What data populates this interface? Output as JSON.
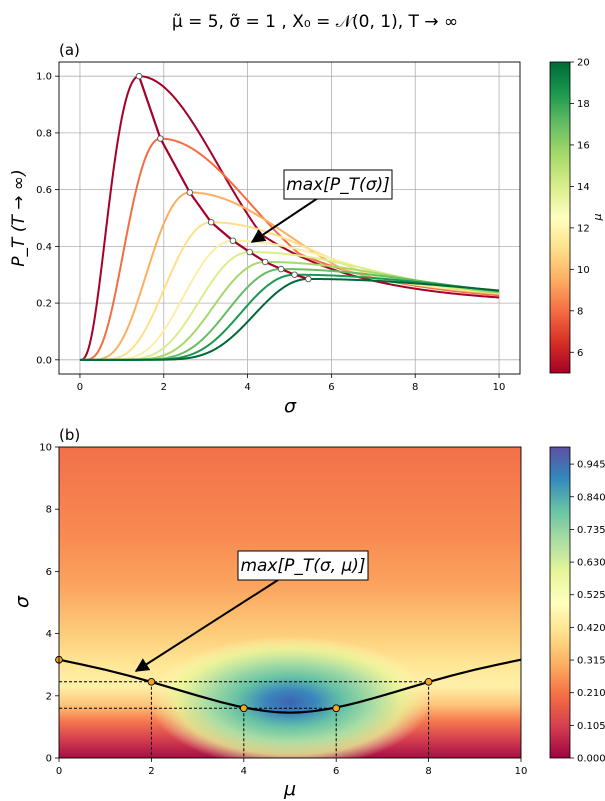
{
  "figure": {
    "suptitle": "μ̃ = 5, σ̃ = 1 , X₀ = 𝒩(0, 1), T → ∞"
  },
  "chart_data": [
    {
      "type": "line",
      "panel_label": "(a)",
      "xlabel": "σ",
      "ylabel": "P_T (T → ∞)",
      "xlim": [
        -0.5,
        10.5
      ],
      "ylim": [
        -0.05,
        1.05
      ],
      "xticks": [
        "0",
        "2",
        "4",
        "6",
        "8",
        "10"
      ],
      "yticks": [
        "0.0",
        "0.2",
        "0.4",
        "0.6",
        "0.8",
        "1.0"
      ],
      "grid": true,
      "annotation": "max[P_T(σ)]",
      "colorbar": {
        "label": "μ",
        "range": [
          5,
          20
        ],
        "ticks": [
          "6",
          "8",
          "10",
          "12",
          "14",
          "16",
          "18",
          "20"
        ],
        "colormap": "RdYlGn"
      },
      "series_mu": [
        5,
        6,
        7,
        8,
        9,
        10,
        11,
        12,
        13,
        14
      ],
      "series_colors": [
        "#a50026",
        "#d73027",
        "#f46d43",
        "#fdae61",
        "#fee08b",
        "#ffffbf",
        "#d9ef8b",
        "#a6d96a",
        "#66bd63",
        "#1a9850",
        "#006837"
      ],
      "maxima": [
        {
          "x": 1.41,
          "y": 1.0
        },
        {
          "x": 1.92,
          "y": 0.78
        },
        {
          "x": 2.62,
          "y": 0.59
        },
        {
          "x": 3.13,
          "y": 0.485
        },
        {
          "x": 3.65,
          "y": 0.42
        },
        {
          "x": 4.05,
          "y": 0.38
        },
        {
          "x": 4.42,
          "y": 0.345
        },
        {
          "x": 4.8,
          "y": 0.32
        },
        {
          "x": 5.12,
          "y": 0.3
        },
        {
          "x": 5.45,
          "y": 0.285
        }
      ],
      "tail_value_at_10": 0.195,
      "envelope_color": "#a50026"
    },
    {
      "type": "heatmap",
      "panel_label": "(b)",
      "xlabel": "μ",
      "ylabel": "σ",
      "xlim": [
        0,
        10
      ],
      "ylim": [
        0,
        10
      ],
      "xticks": [
        "0",
        "2",
        "4",
        "6",
        "8",
        "10"
      ],
      "yticks": [
        "0",
        "2",
        "4",
        "6",
        "8",
        "10"
      ],
      "annotation": "max[P_T(σ, μ)]",
      "colorbar": {
        "range": [
          0,
          1
        ],
        "ticks": [
          "0.000",
          "0.105",
          "0.210",
          "0.315",
          "0.420",
          "0.525",
          "0.630",
          "0.735",
          "0.840",
          "0.945"
        ],
        "colormap": "Spectral"
      },
      "ridge": [
        {
          "mu": 0,
          "sigma": 3.16
        },
        {
          "mu": 1,
          "sigma": 2.85
        },
        {
          "mu": 2,
          "sigma": 2.45
        },
        {
          "mu": 3,
          "sigma": 2.0
        },
        {
          "mu": 4,
          "sigma": 1.6
        },
        {
          "mu": 5,
          "sigma": 1.41
        },
        {
          "mu": 6,
          "sigma": 1.6
        },
        {
          "mu": 7,
          "sigma": 2.0
        },
        {
          "mu": 8,
          "sigma": 2.45
        },
        {
          "mu": 9,
          "sigma": 2.85
        },
        {
          "mu": 10,
          "sigma": 3.16
        }
      ],
      "marked_points": [
        {
          "mu": 0,
          "sigma": 3.16
        },
        {
          "mu": 2,
          "sigma": 2.45
        },
        {
          "mu": 4,
          "sigma": 1.6
        },
        {
          "mu": 6,
          "sigma": 1.6
        },
        {
          "mu": 8,
          "sigma": 2.45
        }
      ]
    }
  ]
}
